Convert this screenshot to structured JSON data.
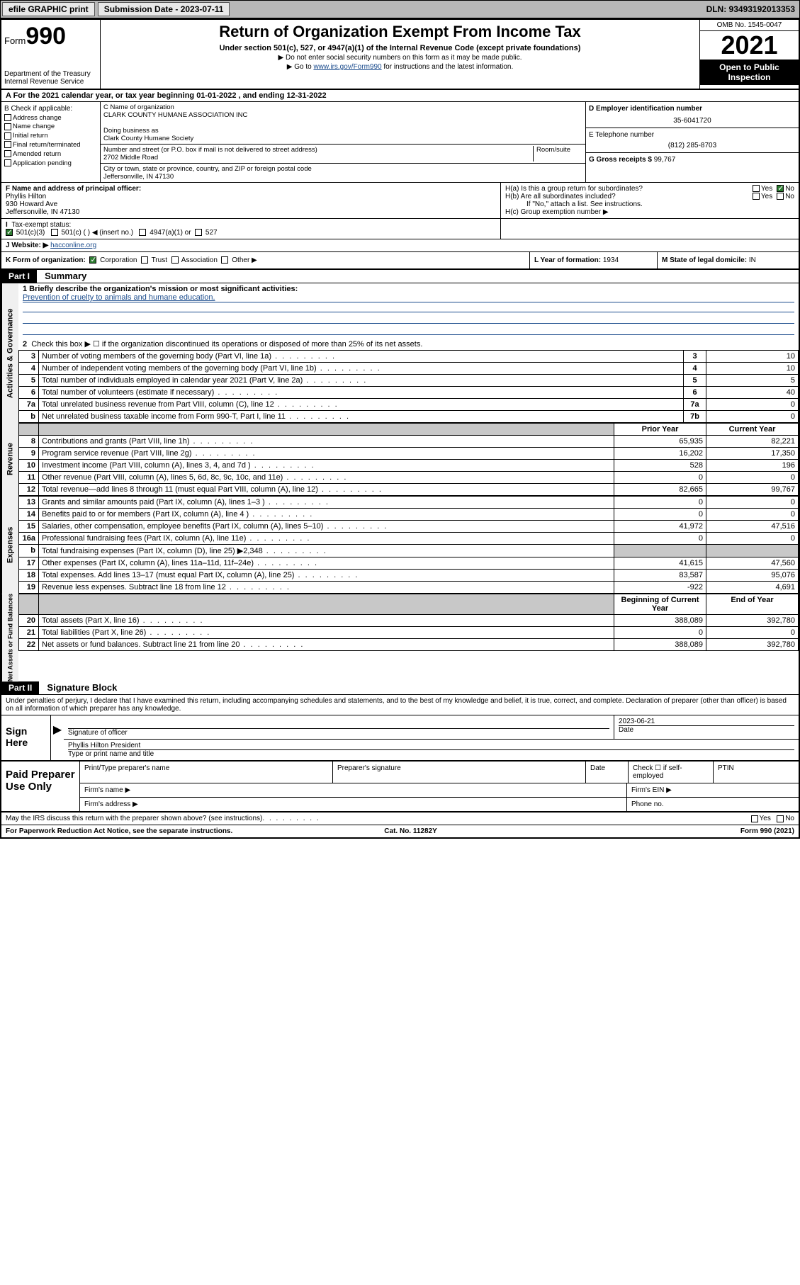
{
  "colors": {
    "topbar_bg": "#b8b8b8",
    "button_bg": "#e8e8e8",
    "black": "#000000",
    "white": "#ffffff",
    "link": "#1a4b8c",
    "grey_cell": "#c8c8c8",
    "vtab_bg": "#f0f0f0",
    "check_green": "#2e7d32"
  },
  "topbar": {
    "efile": "efile GRAPHIC print",
    "submission_label": "Submission Date - 2023-07-11",
    "dln": "DLN: 93493192013353"
  },
  "header": {
    "form_word": "Form",
    "form_num": "990",
    "dept": "Department of the Treasury",
    "irs": "Internal Revenue Service",
    "title": "Return of Organization Exempt From Income Tax",
    "sub": "Under section 501(c), 527, or 4947(a)(1) of the Internal Revenue Code (except private foundations)",
    "note1": "▶ Do not enter social security numbers on this form as it may be made public.",
    "note2_pre": "▶ Go to ",
    "note2_link": "www.irs.gov/Form990",
    "note2_post": " for instructions and the latest information.",
    "omb": "OMB No. 1545-0047",
    "year": "2021",
    "inspect1": "Open to Public",
    "inspect2": "Inspection"
  },
  "row_a": "A For the 2021 calendar year, or tax year beginning 01-01-2022    , and ending 12-31-2022",
  "col_b": {
    "hdr": "B Check if applicable:",
    "items": [
      "Address change",
      "Name change",
      "Initial return",
      "Final return/terminated",
      "Amended return",
      "Application pending"
    ]
  },
  "col_c": {
    "name_label": "C Name of organization",
    "name": "CLARK COUNTY HUMANE ASSOCIATION INC",
    "dba_label": "Doing business as",
    "dba": "Clark County Humane Society",
    "addr_label": "Number and street (or P.O. box if mail is not delivered to street address)",
    "room_label": "Room/suite",
    "addr": "2702 Middle Road",
    "city_label": "City or town, state or province, country, and ZIP or foreign postal code",
    "city": "Jeffersonville, IN  47130"
  },
  "col_d": {
    "label": "D Employer identification number",
    "value": "35-6041720"
  },
  "col_e": {
    "label": "E Telephone number",
    "value": "(812) 285-8703"
  },
  "col_g": {
    "label": "G Gross receipts $",
    "value": "99,767"
  },
  "row_f": {
    "label": "F  Name and address of principal officer:",
    "name": "Phyllis Hilton",
    "addr1": "930 Howard Ave",
    "addr2": "Jeffersonville, IN  47130"
  },
  "row_h": {
    "a": "H(a)  Is this a group return for subordinates?",
    "b": "H(b)  Are all subordinates included?",
    "b_note": "If \"No,\" attach a list. See instructions.",
    "c": "H(c)  Group exemption number ▶",
    "yes": "Yes",
    "no": "No"
  },
  "row_i": {
    "label": "Tax-exempt status:",
    "opts": [
      "501(c)(3)",
      "501(c) (  ) ◀ (insert no.)",
      "4947(a)(1) or",
      "527"
    ]
  },
  "row_j": {
    "label": "J  Website: ▶",
    "value": "hacconline.org"
  },
  "row_k": {
    "label": "K Form of organization:",
    "opts": [
      "Corporation",
      "Trust",
      "Association",
      "Other ▶"
    ]
  },
  "row_l": {
    "label": "L Year of formation:",
    "value": "1934"
  },
  "row_m": {
    "label": "M State of legal domicile:",
    "value": "IN"
  },
  "parts": {
    "p1": "Part I",
    "p1_title": "Summary",
    "p2": "Part II",
    "p2_title": "Signature Block"
  },
  "vtabs": {
    "gov": "Activities & Governance",
    "rev": "Revenue",
    "exp": "Expenses",
    "net": "Net Assets or Fund Balances"
  },
  "summary": {
    "line1_label": "1  Briefly describe the organization's mission or most significant activities:",
    "line1_text": "Prevention of cruelty to animals and humane education.",
    "line2": "Check this box ▶ ☐  if the organization discontinued its operations or disposed of more than 25% of its net assets.",
    "gov_rows": [
      {
        "n": "3",
        "desc": "Number of voting members of the governing body (Part VI, line 1a)",
        "box": "3",
        "val": "10"
      },
      {
        "n": "4",
        "desc": "Number of independent voting members of the governing body (Part VI, line 1b)",
        "box": "4",
        "val": "10"
      },
      {
        "n": "5",
        "desc": "Total number of individuals employed in calendar year 2021 (Part V, line 2a)",
        "box": "5",
        "val": "5"
      },
      {
        "n": "6",
        "desc": "Total number of volunteers (estimate if necessary)",
        "box": "6",
        "val": "40"
      },
      {
        "n": "7a",
        "desc": "Total unrelated business revenue from Part VIII, column (C), line 12",
        "box": "7a",
        "val": "0"
      },
      {
        "n": "b",
        "desc": "Net unrelated business taxable income from Form 990-T, Part I, line 11",
        "box": "7b",
        "val": "0"
      }
    ],
    "col_hdr_prior": "Prior Year",
    "col_hdr_current": "Current Year",
    "rev_rows": [
      {
        "n": "8",
        "desc": "Contributions and grants (Part VIII, line 1h)",
        "p": "65,935",
        "c": "82,221"
      },
      {
        "n": "9",
        "desc": "Program service revenue (Part VIII, line 2g)",
        "p": "16,202",
        "c": "17,350"
      },
      {
        "n": "10",
        "desc": "Investment income (Part VIII, column (A), lines 3, 4, and 7d )",
        "p": "528",
        "c": "196"
      },
      {
        "n": "11",
        "desc": "Other revenue (Part VIII, column (A), lines 5, 6d, 8c, 9c, 10c, and 11e)",
        "p": "0",
        "c": "0"
      },
      {
        "n": "12",
        "desc": "Total revenue—add lines 8 through 11 (must equal Part VIII, column (A), line 12)",
        "p": "82,665",
        "c": "99,767"
      }
    ],
    "exp_rows": [
      {
        "n": "13",
        "desc": "Grants and similar amounts paid (Part IX, column (A), lines 1–3 )",
        "p": "0",
        "c": "0"
      },
      {
        "n": "14",
        "desc": "Benefits paid to or for members (Part IX, column (A), line 4 )",
        "p": "0",
        "c": "0"
      },
      {
        "n": "15",
        "desc": "Salaries, other compensation, employee benefits (Part IX, column (A), lines 5–10)",
        "p": "41,972",
        "c": "47,516"
      },
      {
        "n": "16a",
        "desc": "Professional fundraising fees (Part IX, column (A), line 11e)",
        "p": "0",
        "c": "0"
      },
      {
        "n": "b",
        "desc": "Total fundraising expenses (Part IX, column (D), line 25) ▶2,348",
        "p": "grey",
        "c": "grey"
      },
      {
        "n": "17",
        "desc": "Other expenses (Part IX, column (A), lines 11a–11d, 11f–24e)",
        "p": "41,615",
        "c": "47,560"
      },
      {
        "n": "18",
        "desc": "Total expenses. Add lines 13–17 (must equal Part IX, column (A), line 25)",
        "p": "83,587",
        "c": "95,076"
      },
      {
        "n": "19",
        "desc": "Revenue less expenses. Subtract line 18 from line 12",
        "p": "-922",
        "c": "4,691"
      }
    ],
    "net_hdr_begin": "Beginning of Current Year",
    "net_hdr_end": "End of Year",
    "net_rows": [
      {
        "n": "20",
        "desc": "Total assets (Part X, line 16)",
        "p": "388,089",
        "c": "392,780"
      },
      {
        "n": "21",
        "desc": "Total liabilities (Part X, line 26)",
        "p": "0",
        "c": "0"
      },
      {
        "n": "22",
        "desc": "Net assets or fund balances. Subtract line 21 from line 20",
        "p": "388,089",
        "c": "392,780"
      }
    ]
  },
  "sig": {
    "intro": "Under penalties of perjury, I declare that I have examined this return, including accompanying schedules and statements, and to the best of my knowledge and belief, it is true, correct, and complete. Declaration of preparer (other than officer) is based on all information of which preparer has any knowledge.",
    "sign_here": "Sign Here",
    "sig_officer": "Signature of officer",
    "date": "Date",
    "date_val": "2023-06-21",
    "name_title": "Phyllis Hilton  President",
    "name_title_label": "Type or print name and title",
    "paid": "Paid Preparer Use Only",
    "print_name": "Print/Type preparer's name",
    "prep_sig": "Preparer's signature",
    "prep_date": "Date",
    "check_self": "Check ☐ if self-employed",
    "ptin": "PTIN",
    "firm_name": "Firm's name   ▶",
    "firm_ein": "Firm's EIN ▶",
    "firm_addr": "Firm's address ▶",
    "phone": "Phone no."
  },
  "footer": {
    "discuss": "May the IRS discuss this return with the preparer shown above? (see instructions)",
    "yes": "Yes",
    "no": "No",
    "pra": "For Paperwork Reduction Act Notice, see the separate instructions.",
    "cat": "Cat. No. 11282Y",
    "form": "Form 990 (2021)"
  }
}
